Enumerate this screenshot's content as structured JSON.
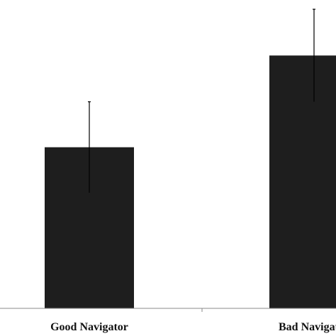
{
  "chart_data": {
    "type": "bar",
    "title": "",
    "xlabel": "",
    "ylabel": "",
    "categories": [
      "Good Navigator",
      "Bad Navigator"
    ],
    "values": [
      209,
      328
    ],
    "error": [
      59,
      60
    ],
    "ylim": [
      0,
      400
    ],
    "grid": false,
    "bar_color": "#1e1e1e",
    "axis_color": "#888888"
  }
}
